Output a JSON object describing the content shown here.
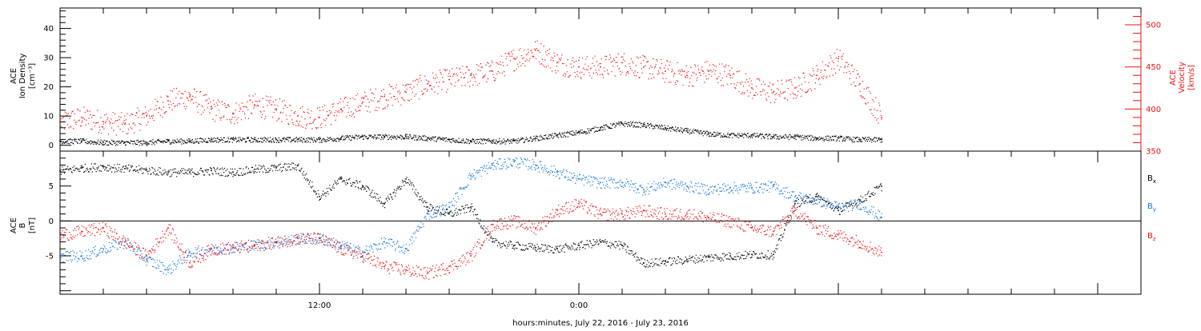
{
  "colors": {
    "black": "#000000",
    "red": "#ee1111",
    "blue": "#1177dd"
  },
  "x_axis": {
    "label": "hours:minutes, July 22, 2016 - July 23, 2016",
    "tick_labels": [
      "12:00",
      "0:00"
    ]
  },
  "top_panel": {
    "left_label": [
      "ACE",
      "Ion Density",
      "[cm⁻³]"
    ],
    "right_label": [
      "ACE",
      "Velocity",
      "[km/s]"
    ]
  },
  "bottom_panel": {
    "left_label": [
      "ACE",
      "B",
      "[nT]"
    ]
  },
  "chart_data": [
    {
      "type": "scatter",
      "title": "",
      "x_unit": "hours since 2016-07-22 00:00",
      "xlim": [
        0,
        50
      ],
      "x_ticks": [
        {
          "x": 12,
          "label": "12:00"
        },
        {
          "x": 24,
          "label": "0:00"
        }
      ],
      "y_left": {
        "ylim": [
          -2,
          47
        ],
        "ticks": [
          0,
          10,
          20,
          30,
          40
        ],
        "color": "#000000"
      },
      "y_right": {
        "ylim": [
          350,
          520
        ],
        "ticks": [
          350,
          400,
          450,
          500
        ],
        "color": "#ee1111"
      },
      "series": [
        {
          "name": "Ion Density",
          "axis": "left",
          "color": "#000000",
          "x": [
            0,
            1,
            2,
            3,
            4,
            5,
            6,
            7,
            8,
            9,
            10,
            11,
            12,
            13,
            14,
            15,
            16,
            17,
            18,
            19,
            20,
            21,
            22,
            23,
            24,
            25,
            26,
            27,
            28,
            29,
            30,
            31,
            32,
            33,
            34,
            35,
            36,
            37,
            38
          ],
          "values": [
            1.5,
            1.5,
            1.0,
            1.0,
            1.0,
            1.5,
            1.5,
            2.0,
            2.0,
            2.0,
            2.0,
            2.0,
            2.0,
            2.5,
            3.0,
            3.0,
            3.0,
            2.5,
            2.0,
            1.5,
            1.5,
            1.5,
            2.5,
            3.5,
            4.5,
            6.0,
            7.5,
            7.0,
            6.0,
            5.0,
            4.0,
            3.5,
            3.5,
            3.0,
            3.0,
            2.5,
            2.5,
            2.0,
            2.0
          ]
        },
        {
          "name": "Velocity",
          "axis": "right",
          "color": "#ee1111",
          "x": [
            0,
            1,
            2,
            3,
            4,
            5,
            6,
            7,
            8,
            9,
            10,
            11,
            12,
            13,
            14,
            15,
            16,
            17,
            18,
            19,
            20,
            21,
            22,
            23,
            24,
            25,
            26,
            27,
            28,
            29,
            30,
            31,
            32,
            33,
            34,
            35,
            36,
            37,
            38
          ],
          "values": [
            385,
            390,
            385,
            382,
            392,
            410,
            415,
            400,
            395,
            405,
            400,
            392,
            390,
            400,
            408,
            415,
            420,
            430,
            435,
            440,
            445,
            460,
            470,
            455,
            450,
            450,
            455,
            450,
            445,
            440,
            445,
            440,
            425,
            420,
            425,
            440,
            460,
            430,
            390
          ]
        }
      ]
    },
    {
      "type": "scatter",
      "title": "",
      "x_unit": "hours since 2016-07-22 00:00",
      "xlim": [
        0,
        50
      ],
      "x_ticks": [
        {
          "x": 12,
          "label": "12:00"
        },
        {
          "x": 24,
          "label": "0:00"
        }
      ],
      "ylim": [
        -10.5,
        10
      ],
      "y_ticks": [
        -5,
        0,
        5
      ],
      "zero_line": true,
      "legend_placement": "right",
      "series": [
        {
          "name": "Bx",
          "name_parts": [
            "B",
            "x"
          ],
          "color": "#000000",
          "x": [
            0,
            1,
            2,
            3,
            4,
            5,
            6,
            7,
            8,
            9,
            10,
            11,
            12,
            13,
            14,
            15,
            16,
            17,
            18,
            19,
            20,
            21,
            22,
            23,
            24,
            25,
            26,
            27,
            28,
            29,
            30,
            31,
            32,
            33,
            34,
            35,
            36,
            37,
            38
          ],
          "values": [
            7.2,
            7.6,
            7.8,
            7.5,
            7.3,
            7.0,
            7.0,
            7.2,
            7.0,
            7.4,
            7.6,
            7.9,
            3.5,
            6.0,
            5.0,
            2.5,
            6.0,
            2.0,
            1.0,
            2.0,
            -3.0,
            -3.5,
            -3.8,
            -4.0,
            -3.5,
            -3.0,
            -3.5,
            -6.0,
            -5.8,
            -5.5,
            -5.2,
            -5.0,
            -4.8,
            -4.8,
            2.5,
            3.5,
            1.5,
            3.0,
            5.0
          ]
        },
        {
          "name": "By",
          "name_parts": [
            "B",
            "y"
          ],
          "color": "#1177dd",
          "x": [
            0,
            1,
            2,
            3,
            4,
            5,
            6,
            7,
            8,
            9,
            10,
            11,
            12,
            13,
            14,
            15,
            16,
            17,
            18,
            19,
            20,
            21,
            22,
            23,
            24,
            25,
            26,
            27,
            28,
            29,
            30,
            31,
            32,
            33,
            34,
            35,
            36,
            37,
            38
          ],
          "values": [
            -5.0,
            -5.0,
            -4.0,
            -3.0,
            -5.5,
            -7.0,
            -4.5,
            -4.0,
            -3.8,
            -3.5,
            -3.0,
            -2.5,
            -2.5,
            -3.5,
            -4.5,
            -3.0,
            -4.0,
            1.0,
            2.0,
            6.5,
            8.0,
            8.5,
            8.0,
            7.0,
            6.0,
            5.5,
            5.5,
            4.5,
            5.5,
            5.0,
            4.5,
            4.8,
            4.8,
            5.0,
            3.5,
            3.0,
            2.0,
            2.5,
            0.5
          ]
        },
        {
          "name": "Bz",
          "name_parts": [
            "B",
            "z"
          ],
          "color": "#ee1111",
          "x": [
            0,
            1,
            2,
            3,
            4,
            5,
            6,
            7,
            8,
            9,
            10,
            11,
            12,
            13,
            14,
            15,
            16,
            17,
            18,
            19,
            20,
            21,
            22,
            23,
            24,
            25,
            26,
            27,
            28,
            29,
            30,
            31,
            32,
            33,
            34,
            35,
            36,
            37,
            38
          ],
          "values": [
            -2.0,
            -1.5,
            -1.0,
            -3.0,
            -5.0,
            -1.0,
            -6.0,
            -4.0,
            -3.8,
            -3.5,
            -3.0,
            -2.5,
            -2.5,
            -4.0,
            -5.0,
            -6.5,
            -7.0,
            -7.5,
            -6.5,
            -5.0,
            -0.5,
            0.0,
            -1.0,
            1.5,
            2.5,
            1.0,
            1.0,
            1.5,
            1.0,
            1.0,
            0.5,
            0.0,
            -1.0,
            -1.5,
            1.5,
            -1.0,
            -2.0,
            -3.0,
            -4.5
          ]
        }
      ]
    }
  ]
}
